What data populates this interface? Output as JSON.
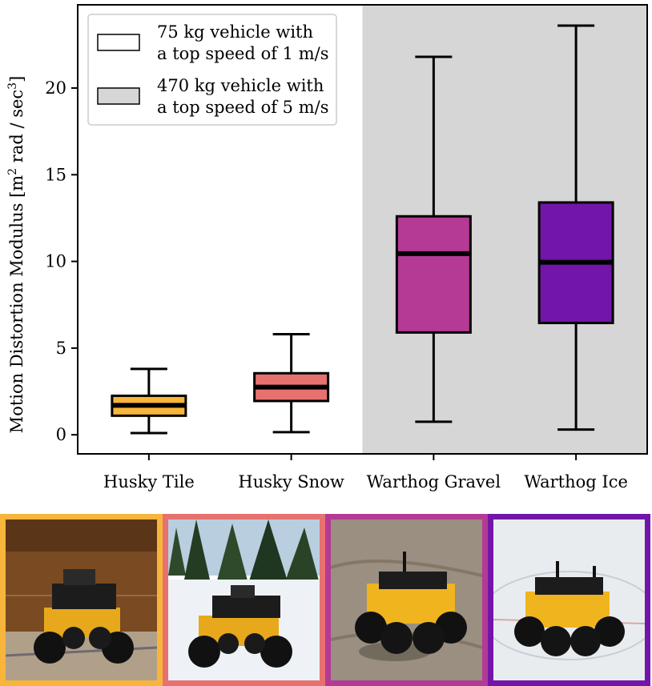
{
  "chart_data": {
    "type": "box",
    "ylabel": "Motion Distortion Modulus [m² rad / sec³]",
    "ylabel_main": "Motion Distortion Modulus [m",
    "ylabel_sup1": "2",
    "ylabel_mid": " rad / sec",
    "ylabel_sup2": "3",
    "ylabel_end": "]",
    "ylim": [
      -1.1,
      24.8
    ],
    "yticks": [
      0,
      5,
      10,
      15,
      20
    ],
    "categories": [
      "Husky Tile",
      "Husky Snow",
      "Warthog Gravel",
      "Warthog Ice"
    ],
    "boxes": [
      {
        "whislo": 0.1,
        "q1": 1.1,
        "med": 1.7,
        "q3": 2.25,
        "whishi": 3.8,
        "color": "#f7b53b"
      },
      {
        "whislo": 0.15,
        "q1": 1.95,
        "med": 2.75,
        "q3": 3.55,
        "whishi": 5.8,
        "color": "#e7716f"
      },
      {
        "whislo": 0.75,
        "q1": 5.9,
        "med": 10.45,
        "q3": 12.6,
        "whishi": 21.8,
        "color": "#b43a95"
      },
      {
        "whislo": 0.3,
        "q1": 6.45,
        "med": 9.95,
        "q3": 13.4,
        "whishi": 23.6,
        "color": "#7216a9"
      }
    ],
    "shaded_region_from_category": 2,
    "shade_color": "#d6d6d6",
    "legend": {
      "placement": "top-left",
      "entries": [
        {
          "line1": "75 kg vehicle with",
          "line2": "a top speed of 1 m/s",
          "fill": "#ffffff"
        },
        {
          "line1": "470 kg vehicle with",
          "line2": "a top speed of 5 m/s",
          "fill": "#d6d6d6"
        }
      ]
    }
  },
  "photos": [
    {
      "name": "husky-tile",
      "border": "#f7b53b"
    },
    {
      "name": "husky-snow",
      "border": "#e7716f"
    },
    {
      "name": "warthog-gravel",
      "border": "#b43a95"
    },
    {
      "name": "warthog-ice",
      "border": "#7216a9"
    }
  ]
}
